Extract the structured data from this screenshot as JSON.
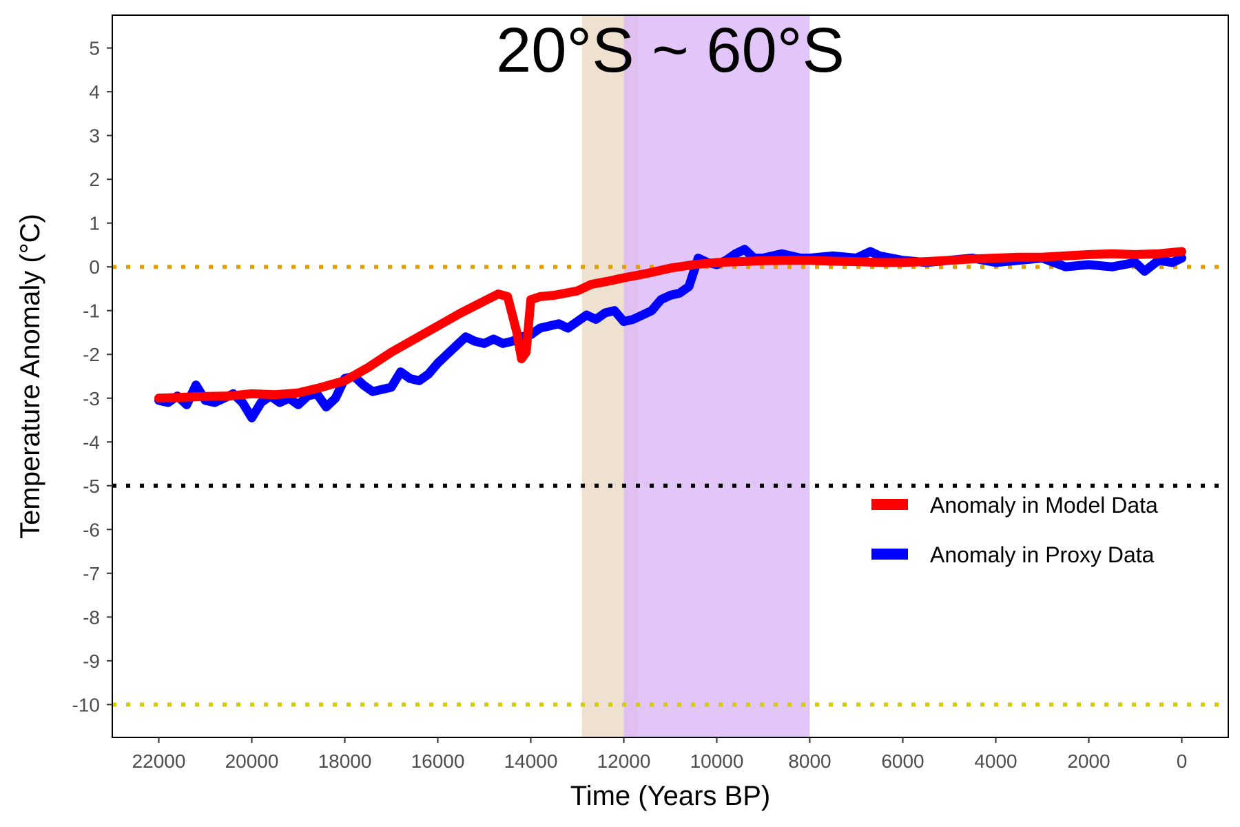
{
  "chart_data": {
    "type": "line",
    "title": "20°S ~ 60°S",
    "xlabel": "Time (Years BP)",
    "ylabel": "Temperature Anomaly (°C)",
    "xlim": [
      23000,
      -1000
    ],
    "ylim": [
      -10.75,
      5.75
    ],
    "x_reversed": true,
    "x_ticks": [
      22000,
      20000,
      18000,
      16000,
      14000,
      12000,
      10000,
      8000,
      6000,
      4000,
      2000,
      0
    ],
    "y_ticks": [
      5,
      4,
      3,
      2,
      1,
      0,
      -1,
      -2,
      -3,
      -4,
      -5,
      -6,
      -7,
      -8,
      -9,
      -10
    ],
    "grid": false,
    "legend_position": "bottom-right",
    "shaded_regions": [
      {
        "from": 12900,
        "to": 11700,
        "color": "#ead9c3"
      },
      {
        "from": 12000,
        "to": 8000,
        "color": "#dcb8f7"
      }
    ],
    "reference_lines": [
      {
        "y": 0,
        "color": "#e69f00",
        "style": "dotted"
      },
      {
        "y": -5,
        "color": "#000000",
        "style": "dotted"
      },
      {
        "y": -10,
        "color": "#d4c90a",
        "style": "dotted"
      }
    ],
    "series": [
      {
        "name": "Anomaly in Model Data",
        "color": "#ff0000",
        "x": [
          22000,
          21500,
          21000,
          20500,
          20000,
          19500,
          19000,
          18500,
          18000,
          17500,
          17000,
          16500,
          16000,
          15500,
          15000,
          14700,
          14500,
          14300,
          14200,
          14100,
          14000,
          13800,
          13500,
          13000,
          12700,
          12300,
          12000,
          11500,
          11000,
          10500,
          10000,
          9500,
          9000,
          8500,
          8000,
          7500,
          7000,
          6500,
          6000,
          5500,
          5000,
          4500,
          4000,
          3500,
          3000,
          2500,
          2000,
          1500,
          1000,
          500,
          0
        ],
        "y": [
          -3.0,
          -2.98,
          -2.96,
          -2.95,
          -2.9,
          -2.92,
          -2.88,
          -2.75,
          -2.6,
          -2.3,
          -1.95,
          -1.65,
          -1.35,
          -1.05,
          -0.78,
          -0.62,
          -0.68,
          -1.5,
          -2.1,
          -1.95,
          -0.75,
          -0.68,
          -0.65,
          -0.55,
          -0.4,
          -0.32,
          -0.25,
          -0.15,
          -0.03,
          0.05,
          0.1,
          0.12,
          0.14,
          0.15,
          0.15,
          0.13,
          0.12,
          0.1,
          0.1,
          0.12,
          0.15,
          0.18,
          0.2,
          0.22,
          0.22,
          0.25,
          0.28,
          0.3,
          0.28,
          0.3,
          0.35
        ]
      },
      {
        "name": "Anomaly in Proxy Data",
        "color": "#0000ff",
        "x": [
          22000,
          21800,
          21600,
          21400,
          21200,
          21000,
          20800,
          20600,
          20400,
          20200,
          20000,
          19800,
          19600,
          19400,
          19200,
          19000,
          18800,
          18600,
          18400,
          18200,
          18000,
          17800,
          17600,
          17400,
          17200,
          17000,
          16800,
          16600,
          16400,
          16200,
          16000,
          15800,
          15600,
          15400,
          15200,
          15000,
          14800,
          14600,
          14400,
          14200,
          14000,
          13800,
          13600,
          13400,
          13200,
          13000,
          12800,
          12600,
          12400,
          12200,
          12000,
          11800,
          11600,
          11400,
          11200,
          11000,
          10800,
          10600,
          10400,
          10200,
          10000,
          9800,
          9600,
          9400,
          9200,
          9000,
          8800,
          8600,
          8400,
          8200,
          8000,
          7500,
          7000,
          6700,
          6500,
          6000,
          5500,
          5000,
          4500,
          4000,
          3500,
          3000,
          2500,
          2000,
          1500,
          1000,
          800,
          500,
          200,
          0
        ],
        "y": [
          -3.05,
          -3.1,
          -2.95,
          -3.15,
          -2.7,
          -3.05,
          -3.1,
          -3.0,
          -2.9,
          -3.1,
          -3.45,
          -3.1,
          -2.95,
          -3.1,
          -3.0,
          -3.15,
          -2.95,
          -2.9,
          -3.2,
          -3.0,
          -2.55,
          -2.5,
          -2.7,
          -2.85,
          -2.8,
          -2.75,
          -2.4,
          -2.55,
          -2.6,
          -2.45,
          -2.2,
          -2.0,
          -1.8,
          -1.6,
          -1.7,
          -1.75,
          -1.65,
          -1.75,
          -1.7,
          -1.6,
          -1.55,
          -1.4,
          -1.35,
          -1.3,
          -1.4,
          -1.25,
          -1.1,
          -1.2,
          -1.05,
          -1.0,
          -1.25,
          -1.2,
          -1.1,
          -1.0,
          -0.75,
          -0.65,
          -0.6,
          -0.45,
          0.2,
          0.1,
          0.05,
          0.15,
          0.3,
          0.4,
          0.2,
          0.2,
          0.25,
          0.3,
          0.25,
          0.2,
          0.2,
          0.25,
          0.2,
          0.35,
          0.25,
          0.15,
          0.1,
          0.15,
          0.2,
          0.1,
          0.15,
          0.2,
          0.0,
          0.05,
          0.0,
          0.1,
          -0.1,
          0.15,
          0.1,
          0.2
        ]
      }
    ]
  }
}
